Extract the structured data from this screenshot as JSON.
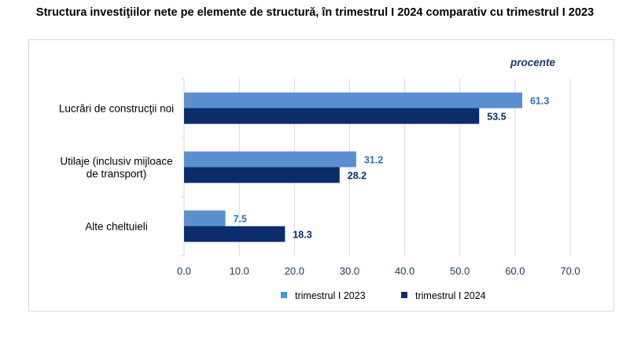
{
  "title": "Structura investiţiilor nete pe elemente de structură, în trimestrul I 2024 comparativ cu trimestrul I 2023",
  "chart_data": {
    "type": "bar",
    "orientation": "horizontal",
    "unit_label": "procente",
    "categories": [
      [
        "Lucrări de construcţii noi"
      ],
      [
        "Utilaje (inclusiv mijloace",
        "de transport)"
      ],
      [
        "Alte cheltuieli"
      ]
    ],
    "series": [
      {
        "name": "trimestrul I 2023",
        "values": [
          61.3,
          31.2,
          7.5
        ],
        "color": "#5b8fcf",
        "label_color": "#2e6fb3"
      },
      {
        "name": "trimestrul I 2024",
        "values": [
          53.5,
          28.2,
          18.3
        ],
        "color": "#0b2d6b",
        "label_color": "#0b2d6b"
      }
    ],
    "xlim": [
      0,
      70
    ],
    "x_ticks": [
      "0.0",
      "10.0",
      "20.0",
      "30.0",
      "40.0",
      "50.0",
      "60.0",
      "70.0"
    ],
    "legend": {
      "position": "bottom",
      "items": [
        {
          "label": "trimestrul I 2023",
          "color": "#3b9ad8"
        },
        {
          "label": "trimestrul I 2024",
          "color": "#0b2d6b"
        }
      ]
    },
    "grid": true,
    "grid_color": "#d9d9d9",
    "axis_text_color": "#1f3864"
  }
}
